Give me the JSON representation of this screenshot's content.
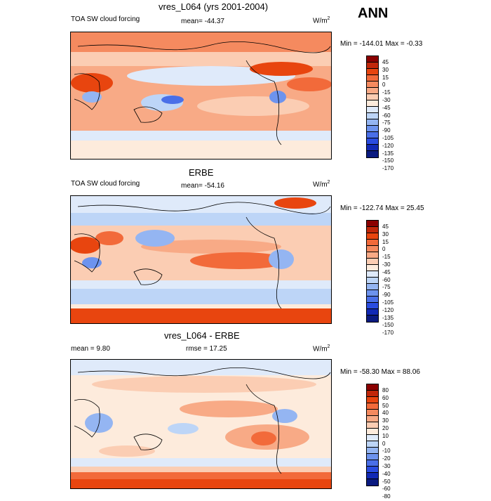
{
  "season": "ANN",
  "variable": "TOA SW cloud forcing",
  "units_base": "W/m",
  "units_sup": "2",
  "panels": [
    {
      "title": "vres_L064 (yrs 2001-2004)",
      "left_label": "TOA SW cloud forcing",
      "center_label": "mean= -44.37",
      "minmax": "Min = -144.01 Max =  -0.33",
      "colorbar_levels": [
        "45",
        "30",
        "15",
        "0",
        "-15",
        "-30",
        "-45",
        "-60",
        "-75",
        "-90",
        "-105",
        "-120",
        "-135",
        "-150",
        "-170"
      ],
      "colors": [
        "#8b0000",
        "#c1270a",
        "#e8450f",
        "#f26a3a",
        "#f58a5f",
        "#f8aa86",
        "#fbcdb3",
        "#fdebdc",
        "#dfeafa",
        "#bdd5f7",
        "#94b5f2",
        "#6d93ee",
        "#4a6fe8",
        "#2a4ce0",
        "#1129b5",
        "#0a1a80"
      ]
    },
    {
      "title": "ERBE",
      "left_label": "TOA SW cloud forcing",
      "center_label": "mean= -54.16",
      "minmax": "Min = -122.74 Max =  25.45",
      "colorbar_levels": [
        "45",
        "30",
        "15",
        "0",
        "-15",
        "-30",
        "-45",
        "-60",
        "-75",
        "-90",
        "-105",
        "-120",
        "-135",
        "-150",
        "-170"
      ],
      "colors": [
        "#8b0000",
        "#c1270a",
        "#e8450f",
        "#f26a3a",
        "#f58a5f",
        "#f8aa86",
        "#fbcdb3",
        "#fdebdc",
        "#dfeafa",
        "#bdd5f7",
        "#94b5f2",
        "#6d93ee",
        "#4a6fe8",
        "#2a4ce0",
        "#1129b5",
        "#0a1a80"
      ]
    },
    {
      "title": "vres_L064 - ERBE",
      "left_label": "mean =   9.80",
      "center_label": "rmse =  17.25",
      "minmax": "Min = -58.30 Max =  88.06",
      "colorbar_levels": [
        "80",
        "60",
        "50",
        "40",
        "30",
        "20",
        "10",
        "0",
        "-10",
        "-20",
        "-30",
        "-40",
        "-50",
        "-60",
        "-80"
      ],
      "colors": [
        "#8b0000",
        "#c1270a",
        "#e8450f",
        "#f26a3a",
        "#f58a5f",
        "#f8aa86",
        "#fbcdb3",
        "#fdebdc",
        "#dfeafa",
        "#bdd5f7",
        "#94b5f2",
        "#6d93ee",
        "#4a6fe8",
        "#2a4ce0",
        "#1129b5",
        "#0a1a80"
      ]
    }
  ]
}
